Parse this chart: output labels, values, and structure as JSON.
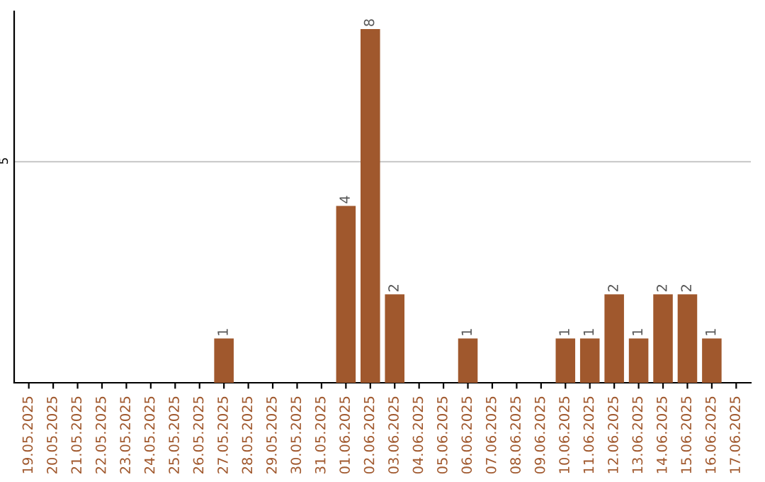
{
  "chart_data": {
    "type": "bar",
    "categories": [
      "19.05.2025",
      "20.05.2025",
      "21.05.2025",
      "22.05.2025",
      "23.05.2025",
      "24.05.2025",
      "25.05.2025",
      "26.05.2025",
      "27.05.2025",
      "28.05.2025",
      "29.05.2025",
      "30.05.2025",
      "31.05.2025",
      "01.06.2025",
      "02.06.2025",
      "03.06.2025",
      "04.06.2025",
      "05.06.2025",
      "06.06.2025",
      "07.06.2025",
      "08.06.2025",
      "09.06.2025",
      "10.06.2025",
      "11.06.2025",
      "12.06.2025",
      "13.06.2025",
      "14.06.2025",
      "15.06.2025",
      "16.06.2025",
      "17.06.2025"
    ],
    "values": [
      0,
      0,
      0,
      0,
      0,
      0,
      0,
      0,
      1,
      0,
      0,
      0,
      0,
      4,
      8,
      2,
      0,
      0,
      1,
      0,
      0,
      0,
      1,
      1,
      2,
      1,
      2,
      2,
      1,
      0
    ],
    "value_labels": [
      null,
      null,
      null,
      null,
      null,
      null,
      null,
      null,
      "1",
      null,
      null,
      null,
      null,
      "4",
      "8",
      "2",
      null,
      null,
      "1",
      null,
      null,
      null,
      "1",
      "1",
      "2",
      "1",
      "2",
      "2",
      "1",
      null
    ],
    "color": "#a0582d",
    "ylim": [
      0,
      8.4
    ],
    "yticks": [
      5
    ],
    "grid": "y"
  }
}
